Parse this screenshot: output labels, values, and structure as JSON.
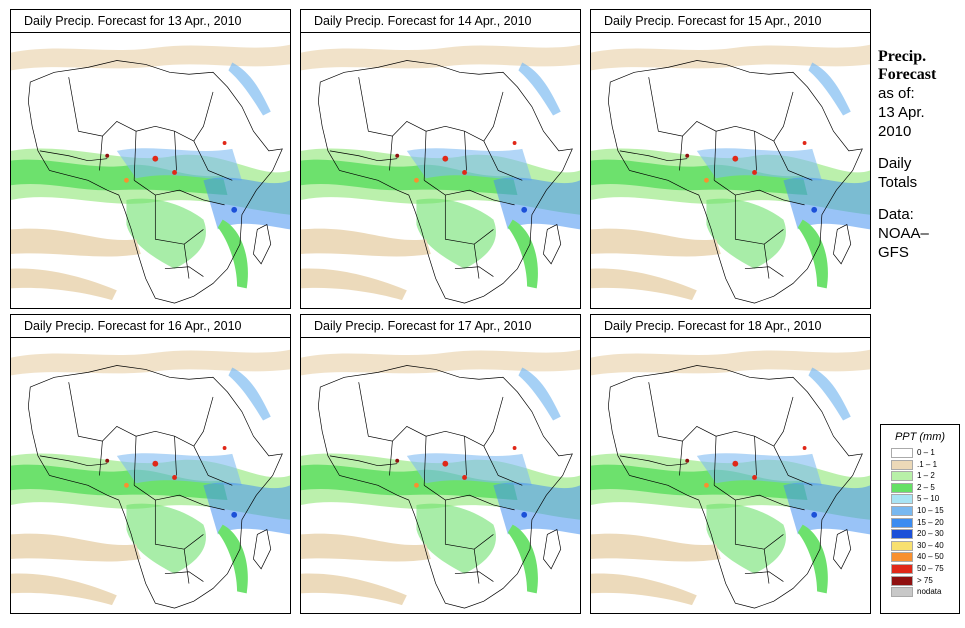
{
  "panels": [
    {
      "title": "Daily Precip. Forecast for  13 Apr., 2010"
    },
    {
      "title": "Daily Precip. Forecast for  14 Apr., 2010"
    },
    {
      "title": "Daily Precip. Forecast for  15 Apr., 2010"
    },
    {
      "title": "Daily Precip. Forecast for  16 Apr., 2010"
    },
    {
      "title": "Daily Precip. Forecast for  17 Apr., 2010"
    },
    {
      "title": "Daily Precip. Forecast for  18 Apr., 2010"
    }
  ],
  "side_info": {
    "title_line1": "Precip.",
    "title_line2": "Forecast",
    "asof_line1": "as of:",
    "asof_line2": "13 Apr.",
    "asof_line3": "2010",
    "period_line1": "Daily",
    "period_line2": "Totals",
    "source_line1": "Data:",
    "source_line2": "NOAA–",
    "source_line3": "GFS"
  },
  "legend": {
    "title": "PPT (mm)",
    "items": [
      {
        "label": "0 – 1",
        "color": "#ffffff"
      },
      {
        "label": ".1 – 1",
        "color": "#ecd9b8"
      },
      {
        "label": "1 – 2",
        "color": "#b8f0a8"
      },
      {
        "label": "2 – 5",
        "color": "#66e066"
      },
      {
        "label": "5 – 10",
        "color": "#a8e4f4"
      },
      {
        "label": "10 – 15",
        "color": "#78b8f0"
      },
      {
        "label": "15 – 20",
        "color": "#3c8cf0"
      },
      {
        "label": "20 – 30",
        "color": "#1c50d8"
      },
      {
        "label": "30 – 40",
        "color": "#f8e070"
      },
      {
        "label": "40 – 50",
        "color": "#f89030"
      },
      {
        "label": "50 – 75",
        "color": "#e02818"
      },
      {
        "label": "> 75",
        "color": "#901010"
      },
      {
        "label": "nodata",
        "color": "#c8c8c8"
      }
    ]
  }
}
